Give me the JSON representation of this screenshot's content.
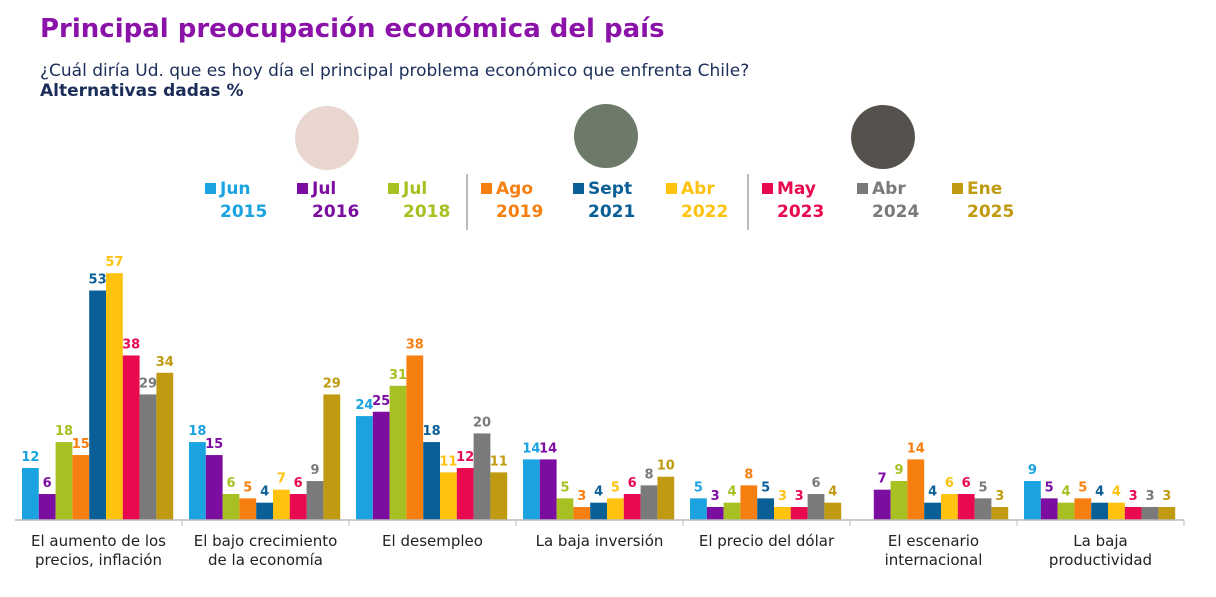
{
  "chart_data": {
    "type": "bar",
    "title": "Principal preocupación económica del país",
    "subtitle": "¿Cuál diría Ud. que es hoy día el principal problema económico que enfrenta Chile?",
    "note": "Alternativas dadas %",
    "categories": [
      "El aumento de los precios, inflación",
      "El bajo crecimiento de la economía",
      "El desempleo",
      "La baja inversión",
      "El precio del dólar",
      "El escenario internacional",
      "La baja productividad"
    ],
    "series": [
      {
        "name": "Jun 2015",
        "color": "#1aa3e0",
        "values": [
          12,
          18,
          24,
          14,
          5,
          null,
          9
        ]
      },
      {
        "name": "Jul 2016",
        "color": "#7b0ea0",
        "values": [
          6,
          15,
          25,
          14,
          3,
          7,
          5
        ]
      },
      {
        "name": "Jul 2018",
        "color": "#a8c021",
        "values": [
          18,
          6,
          31,
          5,
          4,
          9,
          4
        ]
      },
      {
        "name": "Ago 2019",
        "color": "#f77f10",
        "values": [
          15,
          5,
          38,
          3,
          8,
          14,
          5
        ]
      },
      {
        "name": "Sept 2021",
        "color": "#0a5f96",
        "values": [
          53,
          4,
          18,
          4,
          5,
          4,
          4
        ]
      },
      {
        "name": "Abr 2022",
        "color": "#ffc20e",
        "values": [
          57,
          7,
          11,
          5,
          3,
          6,
          4
        ]
      },
      {
        "name": "May 2023",
        "color": "#e8094f",
        "values": [
          38,
          6,
          12,
          6,
          3,
          6,
          3
        ]
      },
      {
        "name": "Abr 2024",
        "color": "#7a7a7a",
        "values": [
          29,
          9,
          20,
          8,
          6,
          5,
          3
        ]
      },
      {
        "name": "Ene 2025",
        "color": "#c09a10",
        "values": [
          34,
          29,
          11,
          10,
          4,
          3,
          3
        ]
      }
    ]
  }
}
